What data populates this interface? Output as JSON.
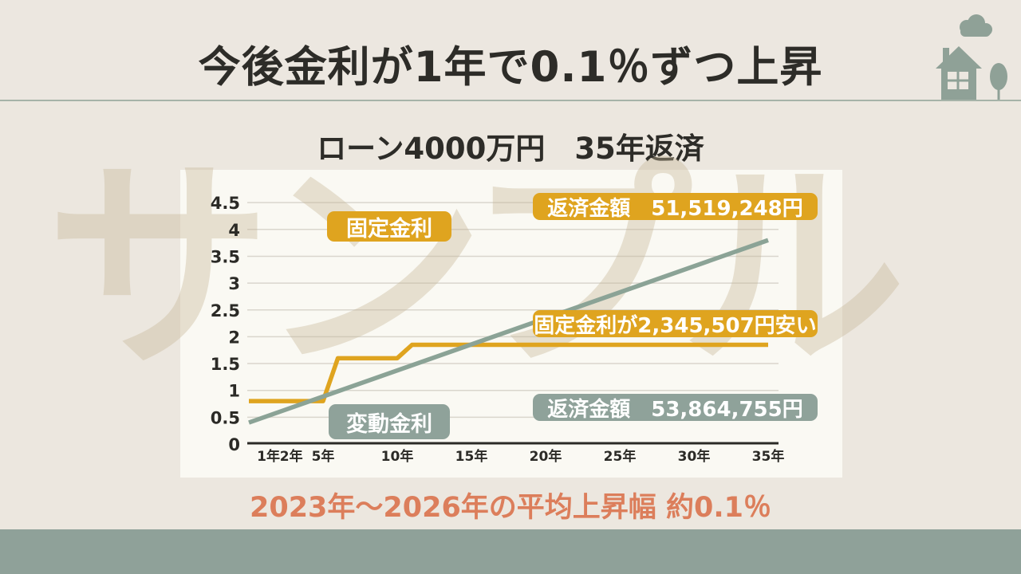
{
  "slide": {
    "title": "今後金利が1年で0.1％ずつ上昇",
    "watermark": "サンプル",
    "footnote": "2023年〜2026年の平均上昇幅 約0.1％"
  },
  "colors": {
    "background": "#ece7df",
    "panel": "#faf9f3",
    "accent_gold": "#dfa41f",
    "accent_sage": "#8fa29a",
    "footnote_coral": "#dc7e5b",
    "footer_bar": "#8fa199",
    "house_icon": "#8fa197",
    "axis": "#2b2a26",
    "gridline": "#d9d6cd"
  },
  "chart_data": {
    "type": "line",
    "title": "ローン4000万円　35年返済",
    "xlim": [
      0,
      35
    ],
    "ylim": [
      0,
      4.5
    ],
    "y_ticks": [
      0,
      0.5,
      1,
      1.5,
      2,
      2.5,
      3,
      3.5,
      4,
      4.5
    ],
    "x_ticks": [
      {
        "year": 1,
        "label": "1年"
      },
      {
        "year": 2,
        "label": "2年"
      },
      {
        "year": 5,
        "label": "5年"
      },
      {
        "year": 10,
        "label": "10年"
      },
      {
        "year": 15,
        "label": "15年"
      },
      {
        "year": 20,
        "label": "20年"
      },
      {
        "year": 25,
        "label": "25年"
      },
      {
        "year": 30,
        "label": "30年"
      },
      {
        "year": 35,
        "label": "35年"
      }
    ],
    "grid": true,
    "legend_position": "on-chart-labels",
    "series": [
      {
        "name": "固定金利",
        "color": "#dfa41f",
        "points": [
          [
            0,
            0.8
          ],
          [
            5,
            0.8
          ],
          [
            6,
            1.6
          ],
          [
            10,
            1.6
          ],
          [
            11,
            1.85
          ],
          [
            35,
            1.85
          ]
        ]
      },
      {
        "name": "変動金利",
        "color": "#8ba396",
        "points": [
          [
            0,
            0.4
          ],
          [
            35,
            3.8
          ]
        ]
      }
    ],
    "annotations": [
      {
        "id": "fixed-legend",
        "text": "固定金利",
        "color": "#dfa41f"
      },
      {
        "id": "fixed-total",
        "text": "返済金額　51,519,248円",
        "color": "#dfa41f"
      },
      {
        "id": "difference",
        "text": "固定金利が2,345,507円安い",
        "color": "#dfa41f"
      },
      {
        "id": "variable-total",
        "text": "返済金額　53,864,755円",
        "color": "#8fa29a"
      },
      {
        "id": "variable-legend",
        "text": "変動金利",
        "color": "#8fa29a"
      }
    ]
  }
}
